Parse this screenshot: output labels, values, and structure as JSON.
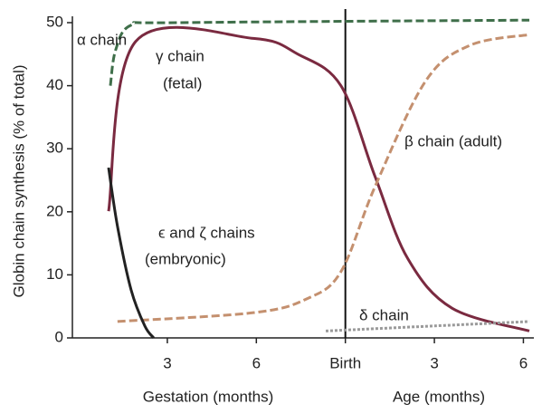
{
  "chart_data": {
    "type": "line",
    "x_labels": [
      "Gestation (months)",
      "Age (months)"
    ],
    "y_label": "Globin chain synthesis (% of total)",
    "xlim": [
      -0.2,
      15.2
    ],
    "ylim": [
      0,
      50
    ],
    "xticks": [
      3,
      6,
      {
        "value": 9,
        "label": "Birth"
      },
      {
        "value": 12,
        "label": "3"
      },
      {
        "value": 15,
        "label": "6"
      }
    ],
    "yticks": [
      0,
      10,
      20,
      30,
      40,
      50
    ],
    "birth": 9,
    "annotations": [
      "α chain",
      "γ chain",
      "(fetal)",
      "β chain (adult)",
      "ϵ and ζ chains",
      "(embryonic)",
      "δ chain"
    ],
    "series": [
      {
        "name": "α chain",
        "color": "#3f6f4a",
        "style": "dashed",
        "x": [
          1.08,
          1.26,
          1.78,
          3.4,
          15.2
        ],
        "values": [
          40,
          45.7,
          49.6,
          50,
          50.4
        ]
      },
      {
        "name": "γ chain",
        "color": "#7a2a40",
        "style": "solid",
        "x": [
          1.02,
          1.93,
          5.9,
          7.4,
          8.85,
          10,
          11.1,
          12.6,
          15.2
        ],
        "values": [
          20.1,
          47,
          47.5,
          45,
          40,
          25.6,
          12.6,
          4.7,
          1.1
        ]
      },
      {
        "name": "β chain",
        "color": "#c4906f",
        "style": "dashed",
        "x": [
          1.32,
          5.9,
          7.7,
          8.85,
          10,
          11.7,
          13.2,
          15.2
        ],
        "values": [
          2.6,
          4,
          6.2,
          10.5,
          24,
          40.7,
          46.4,
          48.1
        ]
      },
      {
        "name": "ϵ and ζ chains",
        "color": "#222222",
        "style": "solid",
        "x": [
          1.02,
          1.32,
          1.78,
          2.24,
          2.54
        ],
        "values": [
          27,
          17.7,
          7.6,
          1.9,
          0
        ]
      },
      {
        "name": "δ chain",
        "color": "#9a9a9a",
        "style": "dotted",
        "x": [
          8.34,
          12,
          15.2
        ],
        "values": [
          1.1,
          1.9,
          2.6
        ]
      }
    ]
  }
}
